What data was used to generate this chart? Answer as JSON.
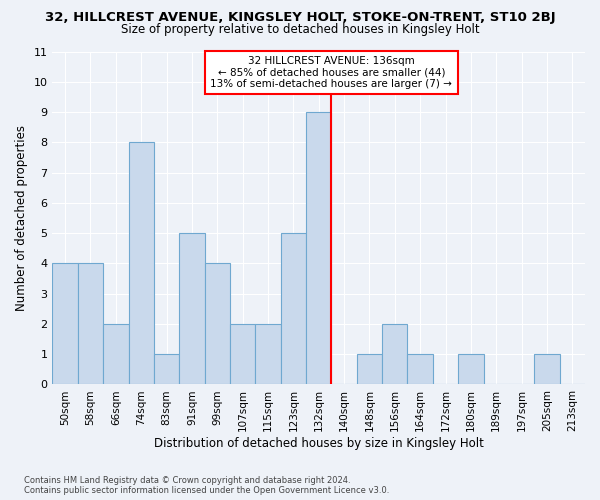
{
  "title_line1": "32, HILLCREST AVENUE, KINGSLEY HOLT, STOKE-ON-TRENT, ST10 2BJ",
  "title_line2": "Size of property relative to detached houses in Kingsley Holt",
  "xlabel": "Distribution of detached houses by size in Kingsley Holt",
  "ylabel": "Number of detached properties",
  "footnote": "Contains HM Land Registry data © Crown copyright and database right 2024.\nContains public sector information licensed under the Open Government Licence v3.0.",
  "bins": [
    "50sqm",
    "58sqm",
    "66sqm",
    "74sqm",
    "83sqm",
    "91sqm",
    "99sqm",
    "107sqm",
    "115sqm",
    "123sqm",
    "132sqm",
    "140sqm",
    "148sqm",
    "156sqm",
    "164sqm",
    "172sqm",
    "180sqm",
    "189sqm",
    "197sqm",
    "205sqm",
    "213sqm"
  ],
  "values": [
    4,
    4,
    2,
    8,
    1,
    5,
    4,
    2,
    2,
    5,
    9,
    0,
    1,
    2,
    1,
    0,
    1,
    0,
    0,
    1,
    0
  ],
  "bar_color": "#c9d9ec",
  "bar_edge_color": "#6fa8d0",
  "property_line_x": 10.5,
  "property_line_color": "red",
  "annotation_text": "32 HILLCREST AVENUE: 136sqm\n← 85% of detached houses are smaller (44)\n13% of semi-detached houses are larger (7) →",
  "ylim": [
    0,
    11
  ],
  "yticks": [
    0,
    1,
    2,
    3,
    4,
    5,
    6,
    7,
    8,
    9,
    10,
    11
  ],
  "background_color": "#eef2f8",
  "grid_color": "white",
  "figsize": [
    6.0,
    5.0
  ],
  "dpi": 100
}
